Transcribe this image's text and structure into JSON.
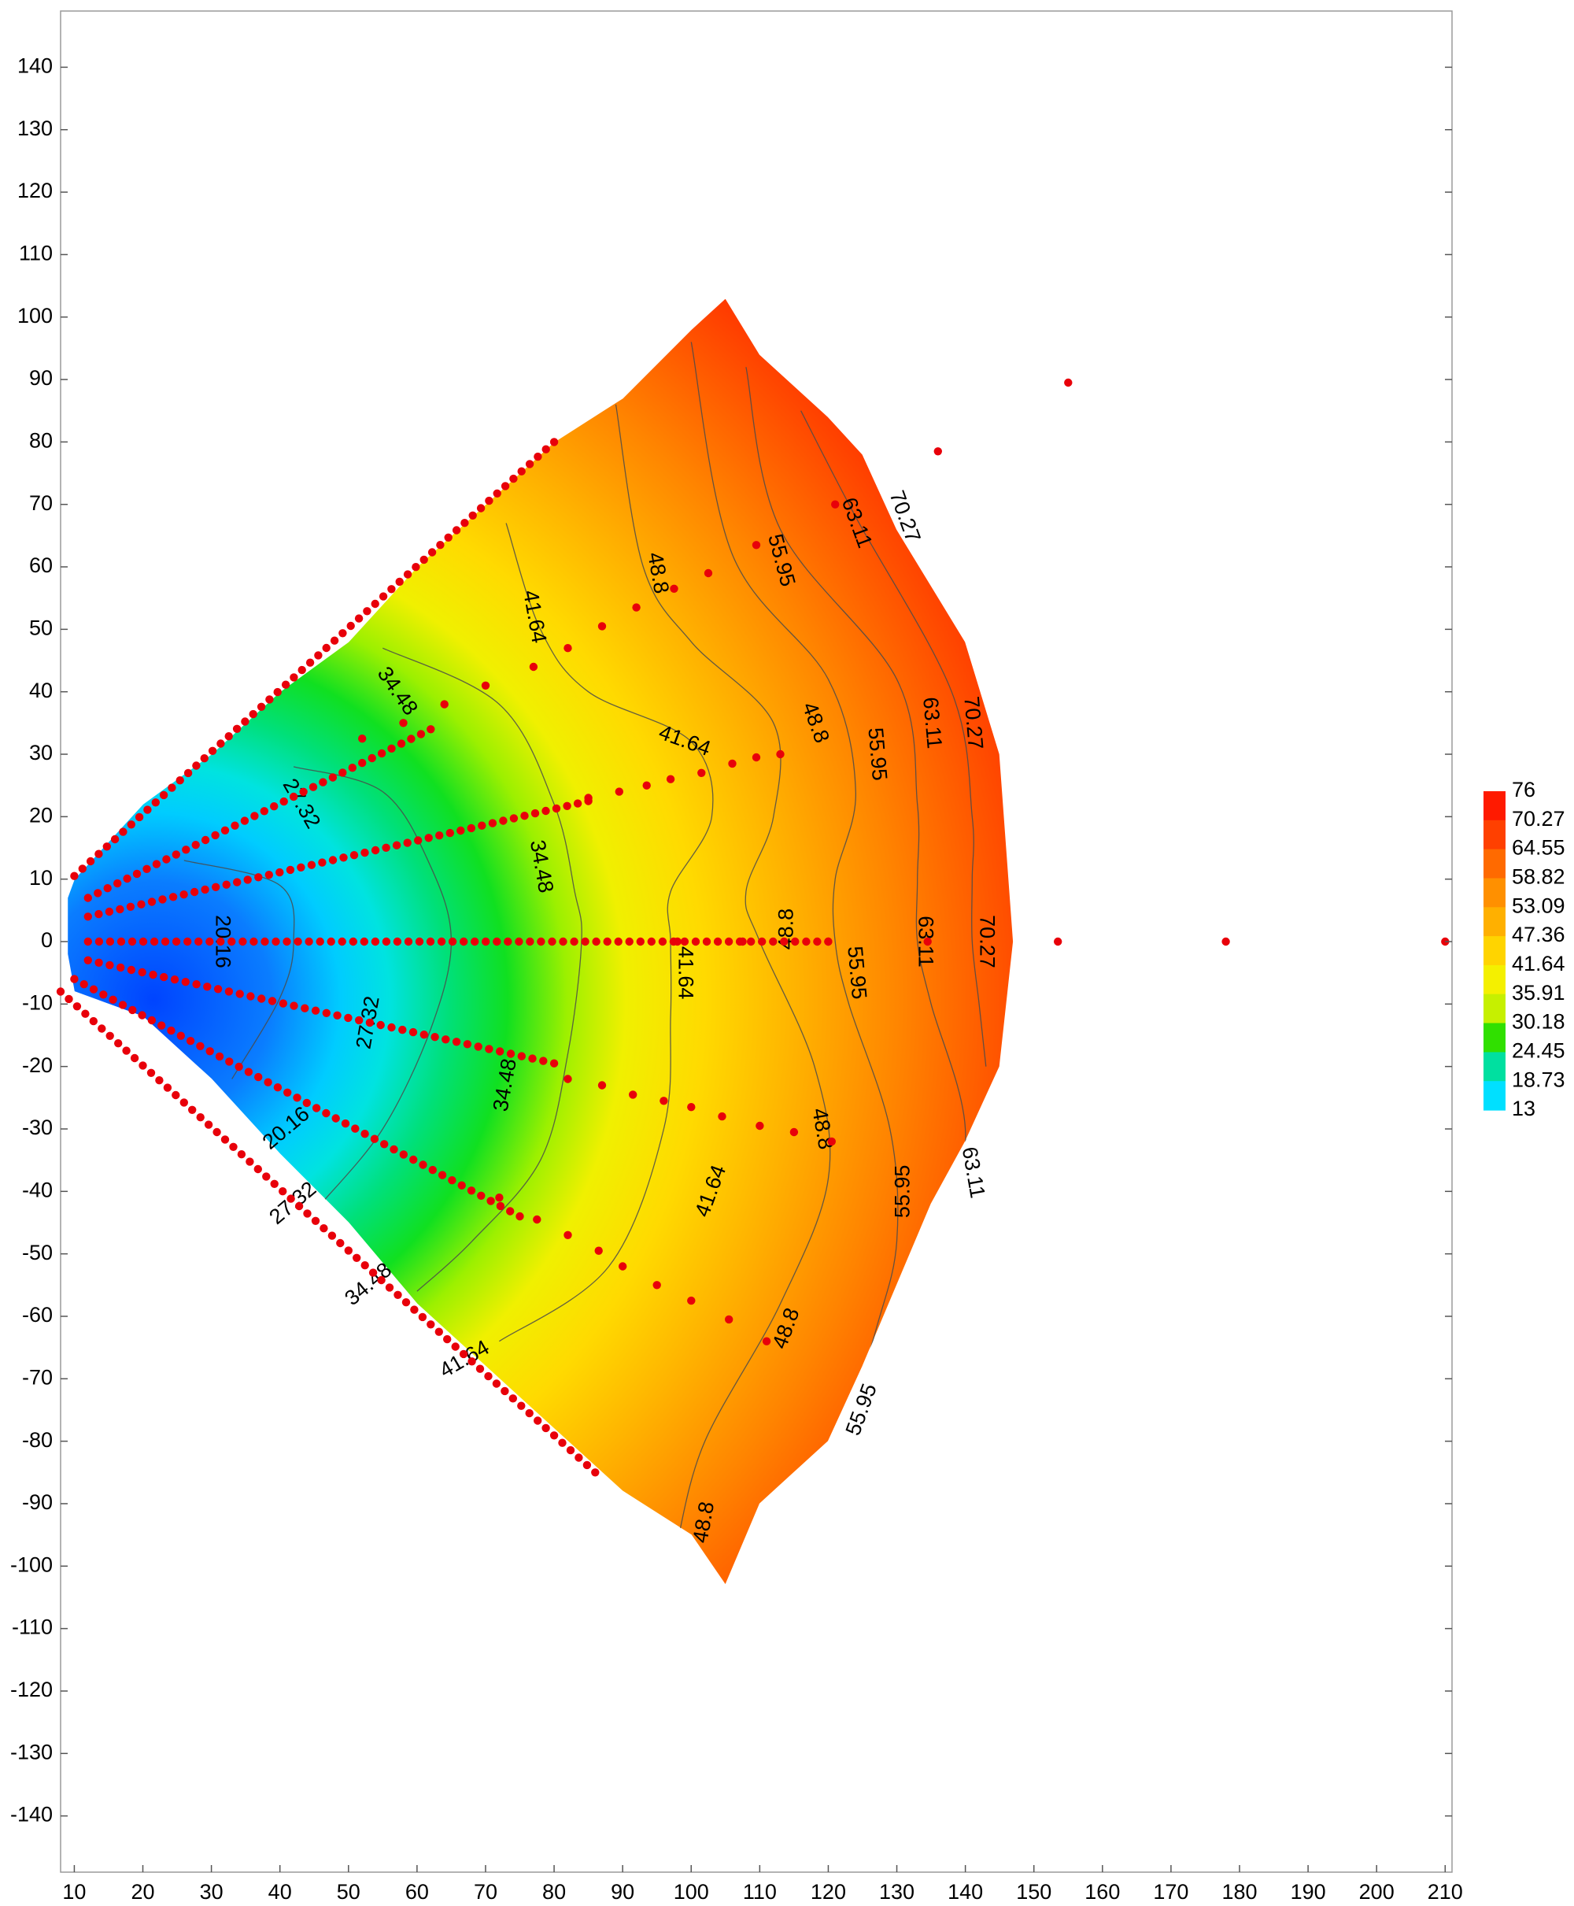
{
  "chart_data": {
    "type": "heatmap",
    "subtype": "filled-contour",
    "title": "",
    "xlabel": "",
    "ylabel": "",
    "xlim": [
      8,
      211
    ],
    "ylim": [
      -149,
      149
    ],
    "x_ticks": [
      10,
      20,
      30,
      40,
      50,
      60,
      70,
      80,
      90,
      100,
      110,
      120,
      130,
      140,
      150,
      160,
      170,
      180,
      190,
      200,
      210
    ],
    "y_ticks": [
      140,
      130,
      120,
      110,
      100,
      90,
      80,
      70,
      60,
      50,
      40,
      30,
      20,
      10,
      0,
      -10,
      -20,
      -30,
      -40,
      -50,
      -60,
      -70,
      -80,
      -90,
      -100,
      -110,
      -120,
      -130,
      -140
    ],
    "colorbar": {
      "min": 13,
      "max": 76,
      "labels": [
        76,
        70.27,
        64.55,
        58.82,
        53.09,
        47.36,
        41.64,
        35.91,
        30.18,
        24.45,
        18.73,
        13
      ],
      "colors": [
        "#ff1a00",
        "#ff4000",
        "#ff6a00",
        "#ff9000",
        "#ffb000",
        "#ffd400",
        "#f4f000",
        "#c6f000",
        "#30e000",
        "#00e0a0",
        "#00e0ff",
        "#0050ff"
      ]
    },
    "fan_boundary": [
      [
        10,
        10
      ],
      [
        20,
        22
      ],
      [
        30,
        30
      ],
      [
        40,
        40
      ],
      [
        50,
        48
      ],
      [
        60,
        60
      ],
      [
        70,
        70
      ],
      [
        80,
        80
      ],
      [
        90,
        87
      ],
      [
        100,
        98
      ],
      [
        105,
        103
      ],
      [
        110,
        94
      ],
      [
        120,
        84
      ],
      [
        125,
        78
      ],
      [
        130,
        66
      ],
      [
        140,
        48
      ],
      [
        145,
        30
      ],
      [
        146,
        15
      ],
      [
        147,
        0
      ],
      [
        146,
        -10
      ],
      [
        145,
        -20
      ],
      [
        140,
        -32
      ],
      [
        135,
        -42
      ],
      [
        130,
        -55
      ],
      [
        125,
        -68
      ],
      [
        120,
        -80
      ],
      [
        115,
        -85
      ],
      [
        110,
        -90
      ],
      [
        105,
        -103
      ],
      [
        100,
        -95
      ],
      [
        90,
        -88
      ],
      [
        80,
        -78
      ],
      [
        70,
        -68
      ],
      [
        60,
        -58
      ],
      [
        50,
        -45
      ],
      [
        40,
        -34
      ],
      [
        30,
        -22
      ],
      [
        20,
        -12
      ],
      [
        10,
        -8
      ],
      [
        9,
        -2
      ],
      [
        9,
        7
      ]
    ],
    "contour_lines": [
      {
        "level": 20.16,
        "points": [
          [
            26,
            13
          ],
          [
            40,
            9
          ],
          [
            42,
            0
          ],
          [
            40,
            -9
          ],
          [
            33,
            -22
          ]
        ]
      },
      {
        "level": 27.32,
        "points": [
          [
            42,
            28
          ],
          [
            55,
            24
          ],
          [
            62,
            12
          ],
          [
            65,
            0
          ],
          [
            62,
            -14
          ],
          [
            55,
            -30
          ],
          [
            46,
            -42
          ]
        ]
      },
      {
        "level": 34.48,
        "points": [
          [
            55,
            47
          ],
          [
            72,
            38
          ],
          [
            80,
            22
          ],
          [
            83,
            8
          ],
          [
            84,
            0
          ],
          [
            82,
            -18
          ],
          [
            78,
            -35
          ],
          [
            68,
            -48
          ],
          [
            60,
            -56
          ]
        ]
      },
      {
        "level": 41.64,
        "points": [
          [
            73,
            67
          ],
          [
            78,
            50
          ],
          [
            85,
            40
          ],
          [
            100,
            32
          ],
          [
            103,
            20
          ],
          [
            97,
            8
          ],
          [
            97,
            0
          ],
          [
            97,
            -12
          ],
          [
            96,
            -30
          ],
          [
            88,
            -52
          ],
          [
            72,
            -64
          ]
        ]
      },
      {
        "level": 48.8,
        "points": [
          [
            89,
            86
          ],
          [
            93,
            60
          ],
          [
            100,
            48
          ],
          [
            112,
            35
          ],
          [
            112,
            20
          ],
          [
            108,
            8
          ],
          [
            110,
            0
          ],
          [
            118,
            -20
          ],
          [
            120,
            -38
          ],
          [
            113,
            -58
          ],
          [
            102,
            -80
          ],
          [
            98,
            -96
          ]
        ]
      },
      {
        "level": 55.95,
        "points": [
          [
            100,
            96
          ],
          [
            106,
            62
          ],
          [
            120,
            42
          ],
          [
            124,
            24
          ],
          [
            121,
            10
          ],
          [
            121,
            0
          ],
          [
            123,
            -10
          ],
          [
            129,
            -30
          ],
          [
            130,
            -48
          ],
          [
            127,
            -62
          ],
          [
            122,
            -80
          ]
        ]
      },
      {
        "level": 63.11,
        "points": [
          [
            108,
            92
          ],
          [
            113,
            66
          ],
          [
            130,
            42
          ],
          [
            133,
            22
          ],
          [
            133,
            10
          ],
          [
            133,
            0
          ],
          [
            135,
            -10
          ],
          [
            140,
            -30
          ],
          [
            137,
            -50
          ],
          [
            130,
            -60
          ]
        ]
      },
      {
        "level": 70.27,
        "points": [
          [
            116,
            85
          ],
          [
            124,
            68
          ],
          [
            138,
            40
          ],
          [
            141,
            20
          ],
          [
            141,
            10
          ],
          [
            141,
            0
          ],
          [
            142,
            -10
          ],
          [
            143,
            -20
          ]
        ]
      }
    ],
    "contour_labels": [
      {
        "text": "20.16",
        "x": 31.5,
        "y": 0,
        "angle": 90
      },
      {
        "text": "20.16",
        "x": 41,
        "y": -30,
        "angle": -40
      },
      {
        "text": "27.32",
        "x": 43,
        "y": 22,
        "angle": 60
      },
      {
        "text": "27.32",
        "x": 53,
        "y": -13,
        "angle": -80
      },
      {
        "text": "27.32",
        "x": 42,
        "y": -42,
        "angle": -40
      },
      {
        "text": "34.48",
        "x": 57,
        "y": 40,
        "angle": 55
      },
      {
        "text": "34.48",
        "x": 78,
        "y": 12,
        "angle": 80
      },
      {
        "text": "34.48",
        "x": 73,
        "y": -23,
        "angle": -80
      },
      {
        "text": "34.48",
        "x": 53,
        "y": -55,
        "angle": -40
      },
      {
        "text": "41.64",
        "x": 77,
        "y": 52,
        "angle": 80
      },
      {
        "text": "41.64",
        "x": 99,
        "y": 32,
        "angle": 20
      },
      {
        "text": "41.64",
        "x": 99,
        "y": -5,
        "angle": 90
      },
      {
        "text": "41.64",
        "x": 103,
        "y": -40,
        "angle": -70
      },
      {
        "text": "41.64",
        "x": 67,
        "y": -67,
        "angle": -30
      },
      {
        "text": "48.8",
        "x": 95,
        "y": 59,
        "angle": 80
      },
      {
        "text": "48.8",
        "x": 118,
        "y": 35,
        "angle": 70
      },
      {
        "text": "48.8",
        "x": 114,
        "y": 2,
        "angle": -90
      },
      {
        "text": "48.8",
        "x": 119,
        "y": -30,
        "angle": 80
      },
      {
        "text": "48.8",
        "x": 114,
        "y": -62,
        "angle": -70
      },
      {
        "text": "48.8",
        "x": 102,
        "y": -93,
        "angle": -80
      },
      {
        "text": "55.95",
        "x": 113,
        "y": 61,
        "angle": 75
      },
      {
        "text": "55.95",
        "x": 127,
        "y": 30,
        "angle": 85
      },
      {
        "text": "55.95",
        "x": 124,
        "y": -5,
        "angle": 85
      },
      {
        "text": "55.95",
        "x": 131,
        "y": -40,
        "angle": -90
      },
      {
        "text": "55.95",
        "x": 125,
        "y": -75,
        "angle": -70
      },
      {
        "text": "63.11",
        "x": 124,
        "y": 67,
        "angle": 70
      },
      {
        "text": "63.11",
        "x": 135,
        "y": 35,
        "angle": 85
      },
      {
        "text": "63.11",
        "x": 134,
        "y": 0,
        "angle": 90
      },
      {
        "text": "63.11",
        "x": 141,
        "y": -37,
        "angle": 80
      },
      {
        "text": "70.27",
        "x": 131,
        "y": 68,
        "angle": 70
      },
      {
        "text": "70.27",
        "x": 141,
        "y": 35,
        "angle": 85
      },
      {
        "text": "70.27",
        "x": 143,
        "y": 0,
        "angle": 90
      }
    ],
    "sample_points": {
      "color": "#e8000a",
      "rays": [
        {
          "start": [
            10,
            10.5
          ],
          "end": [
            80,
            80
          ]
        },
        {
          "start": [
            12,
            7
          ],
          "end": [
            62,
            34
          ]
        },
        {
          "start": [
            12,
            4
          ],
          "end": [
            85,
            22.5
          ]
        },
        {
          "start": [
            12,
            0
          ],
          "end": [
            120,
            0
          ]
        },
        {
          "start": [
            12,
            -3
          ],
          "end": [
            80,
            -19.5
          ]
        },
        {
          "start": [
            10,
            -6
          ],
          "end": [
            75,
            -44
          ]
        },
        {
          "start": [
            8,
            -8
          ],
          "end": [
            86,
            -85
          ]
        }
      ],
      "scattered": [
        [
          155,
          89.5
        ],
        [
          136,
          78.5
        ],
        [
          121,
          70
        ],
        [
          109.5,
          63.5
        ],
        [
          102.5,
          59
        ],
        [
          97.5,
          56.5
        ],
        [
          92,
          53.5
        ],
        [
          87,
          50.5
        ],
        [
          82,
          47
        ],
        [
          77,
          44
        ],
        [
          70,
          41
        ],
        [
          64,
          38
        ],
        [
          58,
          35
        ],
        [
          52,
          32.5
        ],
        [
          106,
          28.5
        ],
        [
          109.5,
          29.5
        ],
        [
          113,
          30
        ],
        [
          101.5,
          27
        ],
        [
          97,
          26
        ],
        [
          93.5,
          25
        ],
        [
          89.5,
          24
        ],
        [
          85,
          23
        ],
        [
          98,
          0
        ],
        [
          107.5,
          0
        ],
        [
          120,
          0
        ],
        [
          134.5,
          0
        ],
        [
          153.5,
          0
        ],
        [
          178,
          0
        ],
        [
          210,
          0
        ],
        [
          82,
          -22
        ],
        [
          87,
          -23
        ],
        [
          91.5,
          -24.5
        ],
        [
          96,
          -25.5
        ],
        [
          100,
          -26.5
        ],
        [
          104.5,
          -28
        ],
        [
          110,
          -29.5
        ],
        [
          115,
          -30.5
        ],
        [
          120.5,
          -32
        ],
        [
          72,
          -41
        ],
        [
          77.5,
          -44.5
        ],
        [
          82,
          -47
        ],
        [
          86.5,
          -49.5
        ],
        [
          90,
          -52
        ],
        [
          95,
          -55
        ],
        [
          100,
          -57.5
        ],
        [
          105.5,
          -60.5
        ],
        [
          111,
          -64
        ]
      ]
    }
  }
}
